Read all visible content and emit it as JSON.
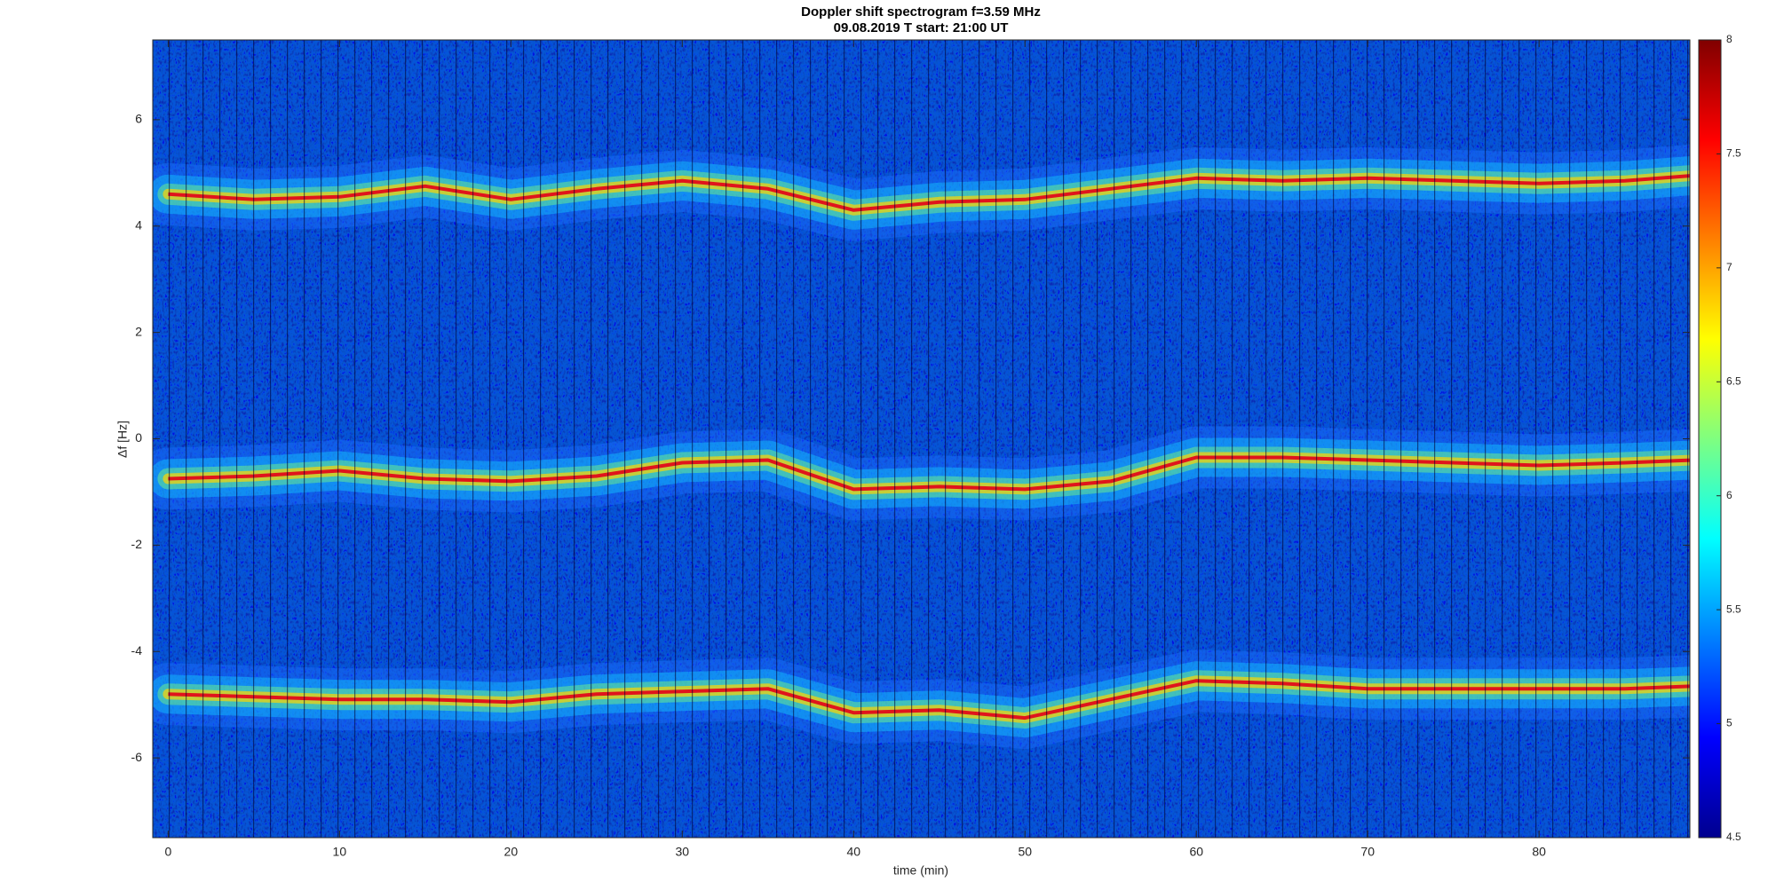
{
  "chart_data": {
    "type": "spectrogram",
    "title": "Doppler shift spectrogram f=3.59 MHz",
    "subtitle": "09.08.2019   T start: 21:00 UT",
    "x_label": "time (min)",
    "y_label": "Δf [Hz]",
    "x": [
      0,
      5,
      10,
      15,
      20,
      25,
      30,
      35,
      40,
      45,
      50,
      55,
      60,
      65,
      70,
      75,
      80,
      85,
      89
    ],
    "series": [
      {
        "color": "#e0141c",
        "values": [
          4.6,
          4.5,
          4.55,
          4.75,
          4.5,
          4.7,
          4.85,
          4.7,
          4.3,
          4.45,
          4.5,
          4.7,
          4.9,
          4.85,
          4.9,
          4.85,
          4.8,
          4.85,
          4.95
        ]
      },
      {
        "color": "#e0141c",
        "values": [
          -0.75,
          -0.7,
          -0.6,
          -0.75,
          -0.8,
          -0.7,
          -0.45,
          -0.4,
          -0.95,
          -0.9,
          -0.95,
          -0.8,
          -0.35,
          -0.35,
          -0.4,
          -0.45,
          -0.5,
          -0.45,
          -0.4
        ]
      },
      {
        "color": "#e0141c",
        "values": [
          -4.8,
          -4.85,
          -4.9,
          -4.9,
          -4.95,
          -4.8,
          -4.75,
          -4.7,
          -5.15,
          -5.1,
          -5.25,
          -4.9,
          -4.55,
          -4.6,
          -4.7,
          -4.7,
          -4.7,
          -4.7,
          -4.65
        ]
      }
    ],
    "xlim": [
      -0.9,
      88.8
    ],
    "ylim": [
      -7.5,
      7.5
    ],
    "xticks": [
      0,
      10,
      20,
      30,
      40,
      50,
      60,
      70,
      80
    ],
    "yticks": [
      -6,
      -4,
      -2,
      0,
      2,
      4,
      6
    ],
    "colormap": "jet",
    "clim": [
      4.5,
      8
    ],
    "cticks": [
      4.5,
      5,
      5.5,
      6,
      6.5,
      7,
      7.5,
      8
    ]
  }
}
